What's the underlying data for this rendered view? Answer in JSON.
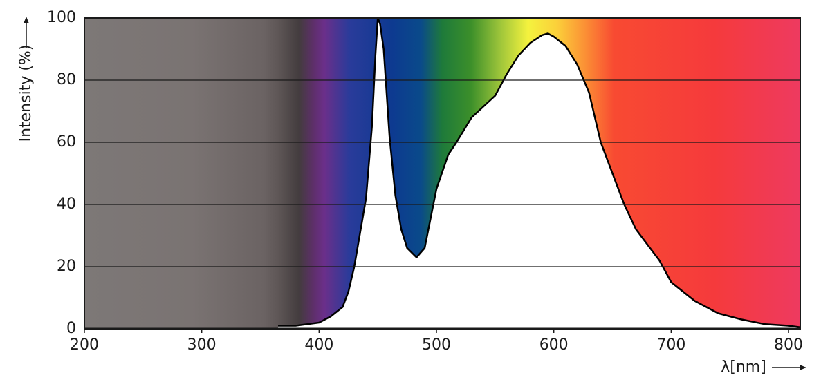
{
  "chart_data": {
    "type": "area",
    "y_label": "Intensity (%)",
    "x_label": "λ[nm]",
    "x": [
      365,
      380,
      400,
      410,
      420,
      425,
      430,
      440,
      445,
      448,
      450,
      452,
      455,
      460,
      465,
      470,
      475,
      483,
      490,
      500,
      510,
      517,
      530,
      550,
      560,
      570,
      580,
      590,
      595,
      600,
      610,
      620,
      630,
      640,
      650,
      660,
      670,
      680,
      690,
      700,
      720,
      740,
      760,
      780,
      800,
      810
    ],
    "values": [
      1,
      1,
      2,
      4,
      7,
      12,
      20,
      42,
      65,
      88,
      100,
      98,
      90,
      62,
      43,
      32,
      26,
      23,
      26,
      45,
      56,
      60,
      68,
      75,
      82,
      88,
      92,
      94.5,
      95,
      94,
      91,
      85,
      76,
      60,
      50,
      40,
      32,
      27,
      22,
      15,
      9,
      5,
      3,
      1.5,
      1,
      0.5
    ],
    "line_color": "#000000",
    "fill_color": "#ffffff",
    "xlim": [
      200,
      810
    ],
    "ylim": [
      0,
      100
    ],
    "xticks": [
      200,
      300,
      400,
      500,
      600,
      700,
      800
    ],
    "yticks": [
      0,
      20,
      40,
      60,
      80,
      100
    ],
    "grid": true
  }
}
